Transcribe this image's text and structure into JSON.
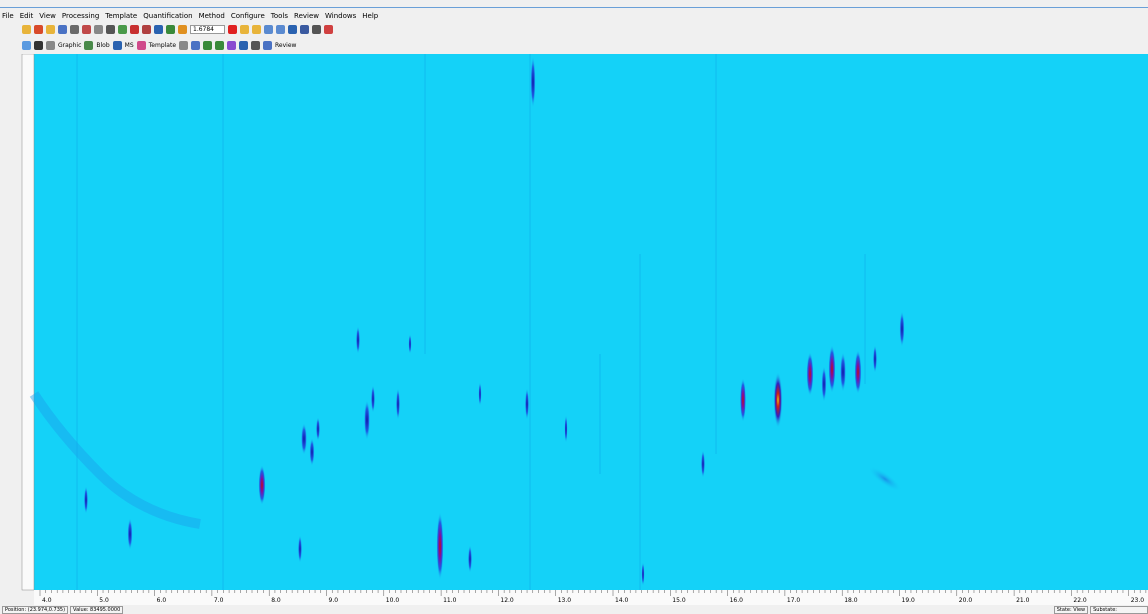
{
  "menu": [
    "File",
    "Edit",
    "View",
    "Processing",
    "Template",
    "Quantification",
    "Method",
    "Configure",
    "Tools",
    "Review",
    "Windows",
    "Help"
  ],
  "toolbar": {
    "zoom_value": "1.6784",
    "buttons": [
      "Graphic",
      "Blob",
      "MS",
      "Template",
      "Review"
    ]
  },
  "x_axis_labels": [
    "4.0",
    "5.0",
    "6.0",
    "7.0",
    "8.0",
    "9.0",
    "10.0",
    "11.0",
    "12.0",
    "13.0",
    "14.0",
    "15.0",
    "16.0",
    "17.0",
    "18.0",
    "19.0",
    "20.0",
    "21.0",
    "22.0",
    "23.0"
  ],
  "status": {
    "position": "Position: (23.974,0.735)",
    "value": "Value: 83495.0000",
    "state": "State: View",
    "substate": "Substate:"
  }
}
